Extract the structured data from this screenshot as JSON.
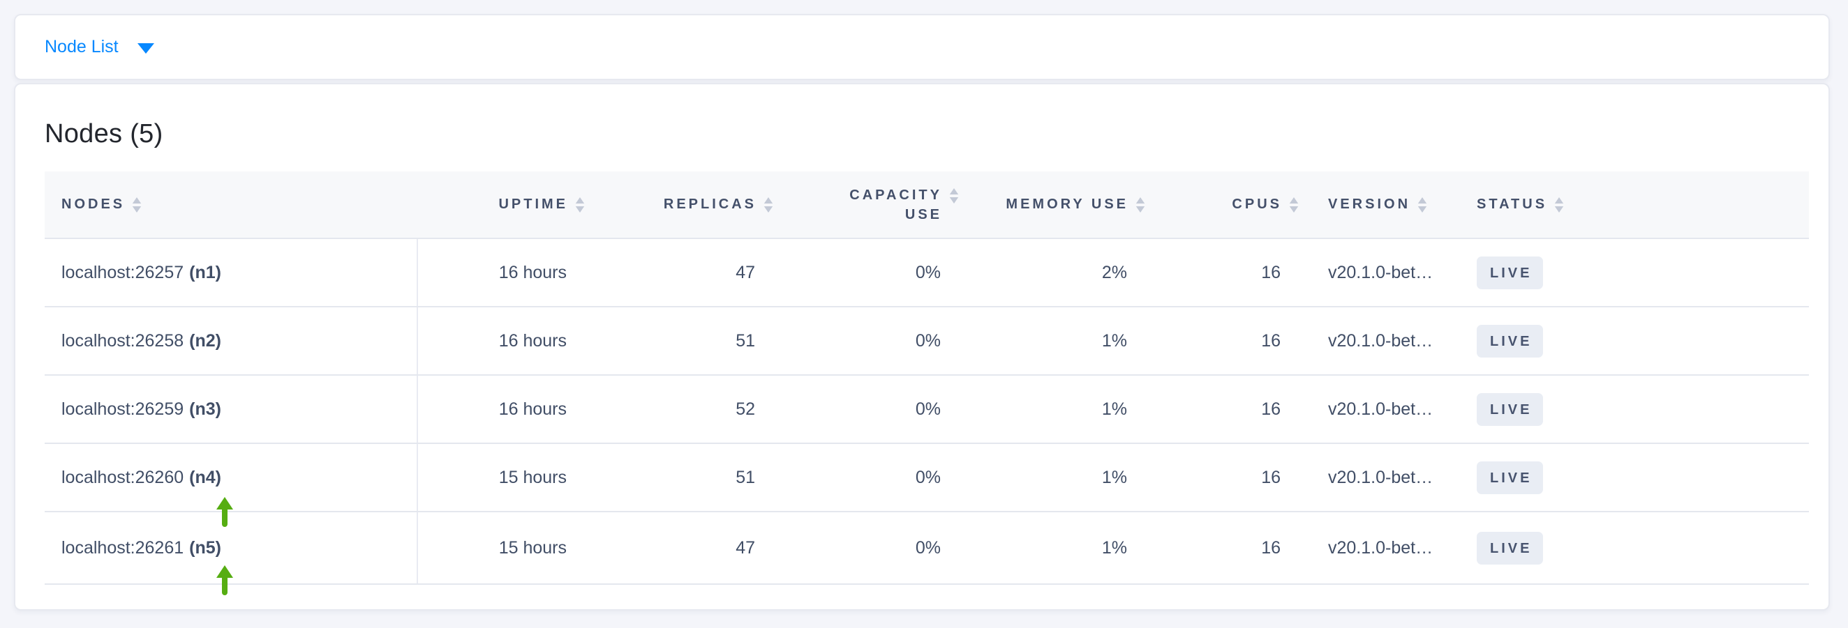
{
  "topbar": {
    "view_label": "Node List"
  },
  "main": {
    "title": "Nodes (5)",
    "table": {
      "columns": [
        {
          "key": "nodes",
          "label": "NODES",
          "align": "left"
        },
        {
          "key": "uptime",
          "label": "UPTIME",
          "align": "right"
        },
        {
          "key": "replicas",
          "label": "REPLICAS",
          "align": "right"
        },
        {
          "key": "capacity",
          "label": "CAPACITY USE",
          "align": "right"
        },
        {
          "key": "memory",
          "label": "MEMORY USE",
          "align": "right"
        },
        {
          "key": "cpus",
          "label": "CPUS",
          "align": "right"
        },
        {
          "key": "version",
          "label": "VERSION",
          "align": "left"
        },
        {
          "key": "status",
          "label": "STATUS",
          "align": "left"
        }
      ],
      "rows": [
        {
          "address": "localhost:26257",
          "name": "(n1)",
          "uptime": "16 hours",
          "replicas": "47",
          "capacity": "0%",
          "memory": "2%",
          "cpus": "16",
          "version": "v20.1.0-bet…",
          "status": "LIVE",
          "recently_added_arrow": false
        },
        {
          "address": "localhost:26258",
          "name": "(n2)",
          "uptime": "16 hours",
          "replicas": "51",
          "capacity": "0%",
          "memory": "1%",
          "cpus": "16",
          "version": "v20.1.0-bet…",
          "status": "LIVE",
          "recently_added_arrow": false
        },
        {
          "address": "localhost:26259",
          "name": "(n3)",
          "uptime": "16 hours",
          "replicas": "52",
          "capacity": "0%",
          "memory": "1%",
          "cpus": "16",
          "version": "v20.1.0-bet…",
          "status": "LIVE",
          "recently_added_arrow": false
        },
        {
          "address": "localhost:26260",
          "name": "(n4)",
          "uptime": "15 hours",
          "replicas": "51",
          "capacity": "0%",
          "memory": "1%",
          "cpus": "16",
          "version": "v20.1.0-bet…",
          "status": "LIVE",
          "recently_added_arrow": true
        },
        {
          "address": "localhost:26261",
          "name": "(n5)",
          "uptime": "15 hours",
          "replicas": "47",
          "capacity": "0%",
          "memory": "1%",
          "cpus": "16",
          "version": "v20.1.0-bet…",
          "status": "LIVE",
          "recently_added_arrow": true
        }
      ]
    }
  },
  "colors": {
    "accent_blue": "#0788ff",
    "arrow_green": "#56ad12",
    "badge_bg": "#e9edf4",
    "badge_text": "#47536e",
    "header_text": "#44506a",
    "cell_text": "#414e66",
    "page_bg": "#f4f5fa"
  }
}
